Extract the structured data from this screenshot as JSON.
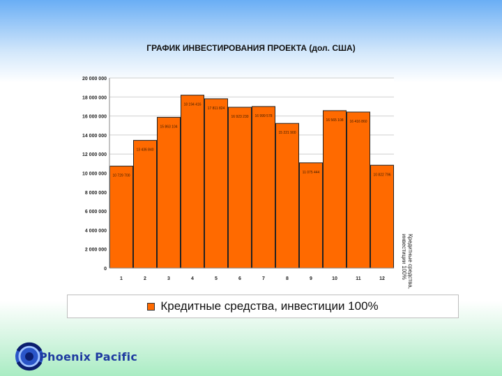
{
  "brand": {
    "name": "Phoenix Pacific",
    "logo_icon": "phoenix-globe-logo-icon"
  },
  "colors": {
    "bar": "#ff6a00",
    "bar_edge": "#222222",
    "plot_bg": "#ffffff",
    "grid": "#cfcfcf"
  },
  "chart_data": {
    "type": "bar",
    "title": "ГРАФИК ИНВЕСТИРОВАНИЯ ПРОЕКТА (дол. США)",
    "xlabel": "",
    "ylabel": "",
    "ylim": [
      0,
      20000000
    ],
    "y_ticks": [
      "0",
      "2 000 000",
      "4 000 000",
      "6 000 000",
      "8 000 000",
      "10 000 000",
      "12 000 000",
      "14 000 000",
      "16 000 000",
      "18 000 000",
      "20 000 000"
    ],
    "categories": [
      "1",
      "2",
      "3",
      "4",
      "5",
      "6",
      "7",
      "8",
      "9",
      "10",
      "11",
      "12"
    ],
    "series": [
      {
        "name": "Кредитные средства, инвестиции 100%",
        "values": [
          10729700,
          13436840,
          15863104,
          18194416,
          17811824,
          16923230,
          16999578,
          15221900,
          11075444,
          16565108,
          16416860,
          10822796
        ],
        "data_labels": [
          "10 729 700",
          "13 436 840",
          "15 863 104",
          "18 194 416",
          "17 811 824",
          "16 923 230",
          "16 999 578",
          "15 221 900",
          "11 075 444",
          "16 565 108",
          "16 416 860",
          "10 822 796"
        ]
      }
    ],
    "legend": "bottom",
    "grid": true
  }
}
